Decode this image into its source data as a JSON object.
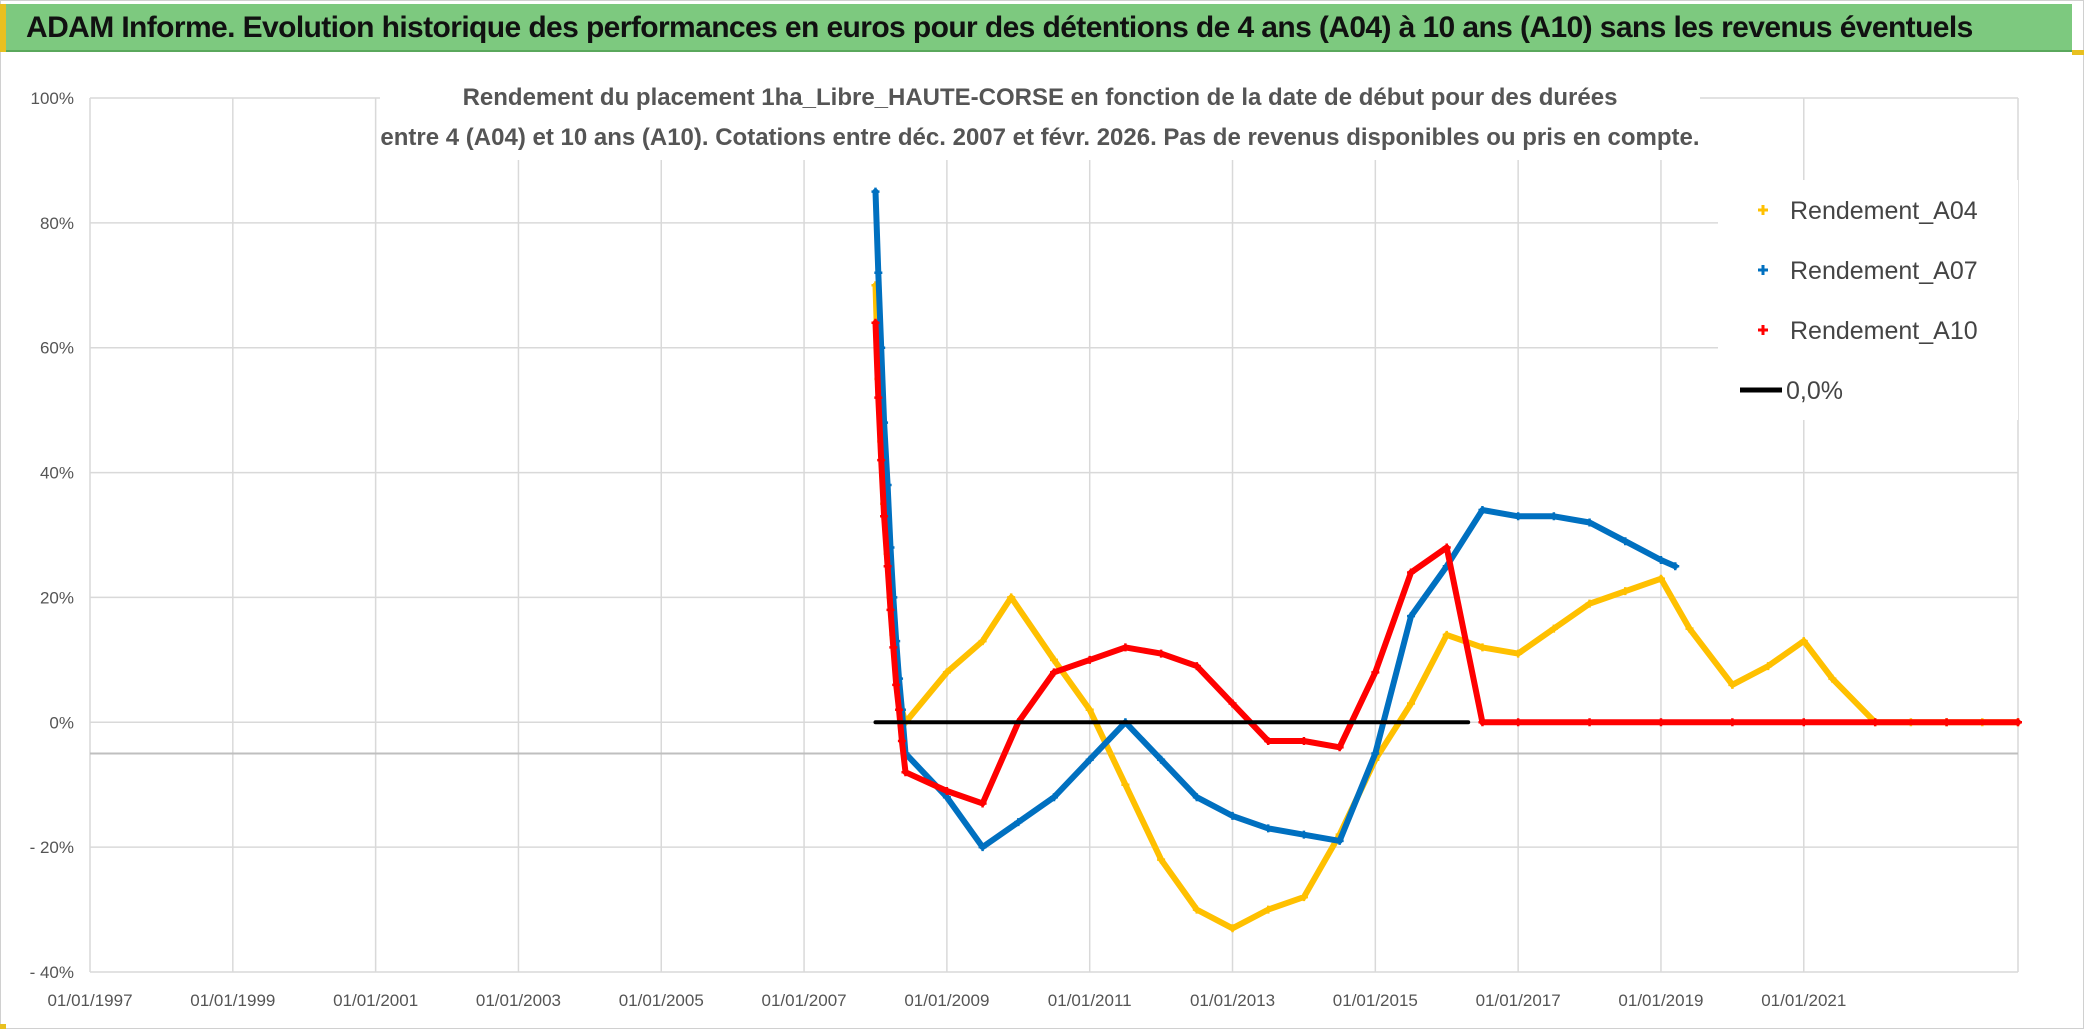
{
  "banner": {
    "title": "ADAM Informe. Evolution historique des performances en euros pour des détentions de 4 ans (A04) à 10 ans (A10) sans les revenus éventuels"
  },
  "colors": {
    "banner_bg": "#7dc97f",
    "a04": "#ffc000",
    "a07": "#0070c0",
    "a10": "#ff0000",
    "zero": "#000000"
  },
  "chart_data": {
    "type": "line",
    "title_line1": "Rendement du placement 1ha_Libre_HAUTE-CORSE en fonction de la date de début pour des durées",
    "title_line2": "entre 4 (A04) et 10 ans (A10). Cotations entre déc. 2007 et févr. 2026. Pas de revenus disponibles ou pris en compte.",
    "xlabel": "",
    "ylabel": "",
    "xlim": [
      1997.0,
      2024.0
    ],
    "ylim": [
      -40,
      100
    ],
    "x_ticks": [
      1997,
      1999,
      2001,
      2003,
      2005,
      2007,
      2009,
      2011,
      2013,
      2015,
      2017,
      2019,
      2021
    ],
    "x_tick_labels": [
      "01/01/1997",
      "01/01/1999",
      "01/01/2001",
      "01/01/2003",
      "01/01/2005",
      "01/01/2007",
      "01/01/2009",
      "01/01/2011",
      "01/01/2013",
      "01/01/2015",
      "01/01/2017",
      "01/01/2019",
      "01/01/2021"
    ],
    "y_ticks": [
      100,
      80,
      60,
      40,
      20,
      0,
      -20,
      -40
    ],
    "y_tick_labels": [
      "100%",
      "80%",
      "60%",
      "40%",
      "20%",
      "0%",
      "- 20%",
      "- 40%"
    ],
    "series": [
      {
        "name": "Rendement_A04",
        "color": "#ffc000",
        "x": [
          2008.0,
          2008.04,
          2008.08,
          2008.12,
          2008.17,
          2008.21,
          2008.25,
          2008.29,
          2008.33,
          2008.37,
          2008.42,
          2009.0,
          2009.5,
          2009.9,
          2010.5,
          2011.0,
          2011.5,
          2012.0,
          2012.5,
          2013.0,
          2013.5,
          2014.0,
          2014.5,
          2015.0,
          2015.5,
          2016.0,
          2016.5,
          2017.0,
          2017.5,
          2018.0,
          2018.5,
          2019.0,
          2019.4,
          2020.0,
          2020.5,
          2021.0,
          2021.4,
          2022.0,
          2022.5,
          2023.0,
          2023.5,
          2024.0
        ],
        "y": [
          70,
          55,
          45,
          35,
          27,
          20,
          14,
          9,
          5,
          2,
          0,
          8,
          13,
          20,
          10,
          2,
          -10,
          -22,
          -30,
          -33,
          -30,
          -28,
          -18,
          -6,
          3,
          14,
          12,
          11,
          15,
          19,
          21,
          23,
          15,
          6,
          9,
          13,
          7,
          0,
          0,
          0,
          0,
          0
        ]
      },
      {
        "name": "Rendement_A07",
        "color": "#0070c0",
        "x": [
          2008.0,
          2008.04,
          2008.08,
          2008.12,
          2008.17,
          2008.21,
          2008.25,
          2008.29,
          2008.33,
          2008.37,
          2008.42,
          2009.0,
          2009.5,
          2010.0,
          2010.5,
          2011.0,
          2011.5,
          2012.0,
          2012.5,
          2013.0,
          2013.5,
          2014.0,
          2014.5,
          2015.0,
          2015.5,
          2016.0,
          2016.5,
          2017.0,
          2017.5,
          2018.0,
          2018.5,
          2019.0,
          2019.2
        ],
        "y": [
          85,
          72,
          60,
          48,
          38,
          28,
          20,
          13,
          7,
          2,
          -5,
          -12,
          -20,
          -16,
          -12,
          -6,
          0,
          -6,
          -12,
          -15,
          -17,
          -18,
          -19,
          -5,
          17,
          25,
          34,
          33,
          33,
          32,
          29,
          26,
          25
        ]
      },
      {
        "name": "Rendement_A10",
        "color": "#ff0000",
        "x": [
          2008.0,
          2008.04,
          2008.08,
          2008.12,
          2008.17,
          2008.21,
          2008.25,
          2008.29,
          2008.33,
          2008.37,
          2008.42,
          2009.0,
          2009.5,
          2010.0,
          2010.5,
          2011.0,
          2011.5,
          2012.0,
          2012.5,
          2013.0,
          2013.5,
          2014.0,
          2014.5,
          2015.0,
          2015.5,
          2016.0,
          2016.5,
          2017.0,
          2018.0,
          2019.0,
          2020.0,
          2021.0,
          2022.0,
          2023.0,
          2024.0
        ],
        "y": [
          64,
          52,
          42,
          33,
          25,
          18,
          12,
          6,
          2,
          -3,
          -8,
          -11,
          -13,
          0,
          8,
          10,
          12,
          11,
          9,
          3,
          -3,
          -3,
          -4,
          8,
          24,
          28,
          0,
          0,
          0,
          0,
          0,
          0,
          0,
          0,
          0
        ]
      },
      {
        "name": "0,0%",
        "color": "#000000",
        "x": [
          2008.0,
          2016.3
        ],
        "y": [
          0,
          0
        ]
      }
    ],
    "legend": {
      "position": "top-right",
      "items": [
        "Rendement_A04",
        "Rendement_A07",
        "Rendement_A10",
        "0,0%"
      ]
    }
  }
}
